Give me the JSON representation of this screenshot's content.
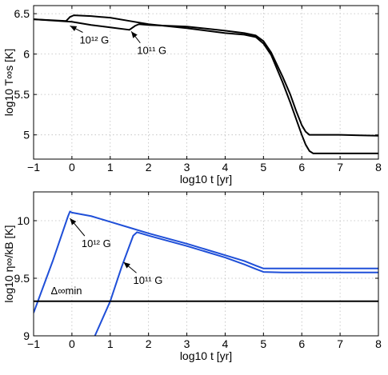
{
  "chart_data": [
    {
      "type": "line",
      "xlabel": "log10 t [yr]",
      "ylabel": "log10 T∞s [K]",
      "xlim": [
        -1,
        8
      ],
      "ylim": [
        4.7,
        6.6
      ],
      "xticks": [
        -1,
        0,
        1,
        2,
        3,
        4,
        5,
        6,
        7,
        8
      ],
      "yticks": [
        5,
        5.5,
        6,
        6.5
      ],
      "ytick_labels": [
        "5",
        "5.5",
        "6",
        "6.5"
      ],
      "grid": true,
      "line_color": "#000000",
      "series": [
        {
          "name": "10^12 G",
          "x": [
            -1,
            -0.15,
            -0.05,
            0.05,
            0.5,
            1,
            1.5,
            2,
            3,
            4,
            4.5,
            4.8,
            5.0,
            5.2,
            5.5,
            5.7,
            5.85,
            6.0,
            6.1,
            6.2,
            6.3,
            6.6,
            7,
            7.5,
            8
          ],
          "y": [
            6.43,
            6.41,
            6.46,
            6.48,
            6.47,
            6.45,
            6.41,
            6.37,
            6.32,
            6.26,
            6.24,
            6.21,
            6.13,
            5.99,
            5.65,
            5.4,
            5.2,
            5.0,
            4.88,
            4.8,
            4.77,
            4.77,
            4.77,
            4.77,
            4.77
          ]
        },
        {
          "name": "10^11 G",
          "x": [
            -1,
            0,
            0.5,
            1,
            1.5,
            1.65,
            1.75,
            2,
            3,
            4,
            4.5,
            4.8,
            5.0,
            5.2,
            5.5,
            5.7,
            5.85,
            6.0,
            6.1,
            6.2,
            6.3,
            6.6,
            7,
            7.5,
            8
          ],
          "y": [
            6.43,
            6.4,
            6.36,
            6.33,
            6.3,
            6.35,
            6.37,
            6.36,
            6.34,
            6.29,
            6.26,
            6.23,
            6.16,
            6.02,
            5.72,
            5.5,
            5.3,
            5.12,
            5.04,
            5.0,
            5.0,
            5.0,
            5.0,
            4.995,
            4.99
          ]
        }
      ],
      "annotations": [
        {
          "text": "10¹² G",
          "x": 0.2,
          "y": 6.13,
          "arrow_to": [
            -0.05,
            6.35
          ]
        },
        {
          "text": "10¹¹ G",
          "x": 1.7,
          "y": 6.0,
          "arrow_to": [
            1.55,
            6.28
          ]
        }
      ]
    },
    {
      "type": "line",
      "xlabel": "log10 t [yr]",
      "ylabel": "log10 η∞/kB [K]",
      "xlim": [
        -1,
        8
      ],
      "ylim": [
        9,
        10.25
      ],
      "xticks": [
        -1,
        0,
        1,
        2,
        3,
        4,
        5,
        6,
        7,
        8
      ],
      "yticks": [
        9,
        9.5,
        10
      ],
      "ytick_labels": [
        "9",
        "9.5",
        "10"
      ],
      "grid": true,
      "line_color": "#1f4fd8",
      "series": [
        {
          "name": "10^12 G",
          "x": [
            -1,
            -0.5,
            -0.1,
            -0.05,
            0,
            0.5,
            1,
            1.5,
            2,
            3,
            4,
            4.5,
            4.8,
            5,
            5.5,
            6,
            7,
            8
          ],
          "y": [
            9.2,
            9.65,
            10.04,
            10.08,
            10.07,
            10.04,
            9.99,
            9.94,
            9.89,
            9.8,
            9.7,
            9.65,
            9.61,
            9.585,
            9.585,
            9.585,
            9.585,
            9.585
          ]
        },
        {
          "name": "10^11 G",
          "x": [
            0.6,
            1.0,
            1.3,
            1.6,
            1.7,
            1.8,
            2,
            3,
            4,
            4.5,
            4.8,
            5,
            5.5,
            6,
            7,
            8
          ],
          "y": [
            9.0,
            9.3,
            9.6,
            9.87,
            9.9,
            9.89,
            9.87,
            9.78,
            9.68,
            9.62,
            9.58,
            9.555,
            9.55,
            9.55,
            9.55,
            9.55
          ]
        },
        {
          "name": "Δ∞min",
          "x": [
            -1,
            8
          ],
          "y": [
            9.3,
            9.3
          ],
          "color": "#000000"
        }
      ],
      "annotations": [
        {
          "text": "10¹² G",
          "x": 0.25,
          "y": 9.77,
          "arrow_to": [
            -0.05,
            10.02
          ]
        },
        {
          "text": "10¹¹ G",
          "x": 1.6,
          "y": 9.45,
          "arrow_to": [
            1.35,
            9.64
          ]
        },
        {
          "text": "Δ∞min",
          "x": -0.55,
          "y": 9.36
        }
      ]
    }
  ]
}
